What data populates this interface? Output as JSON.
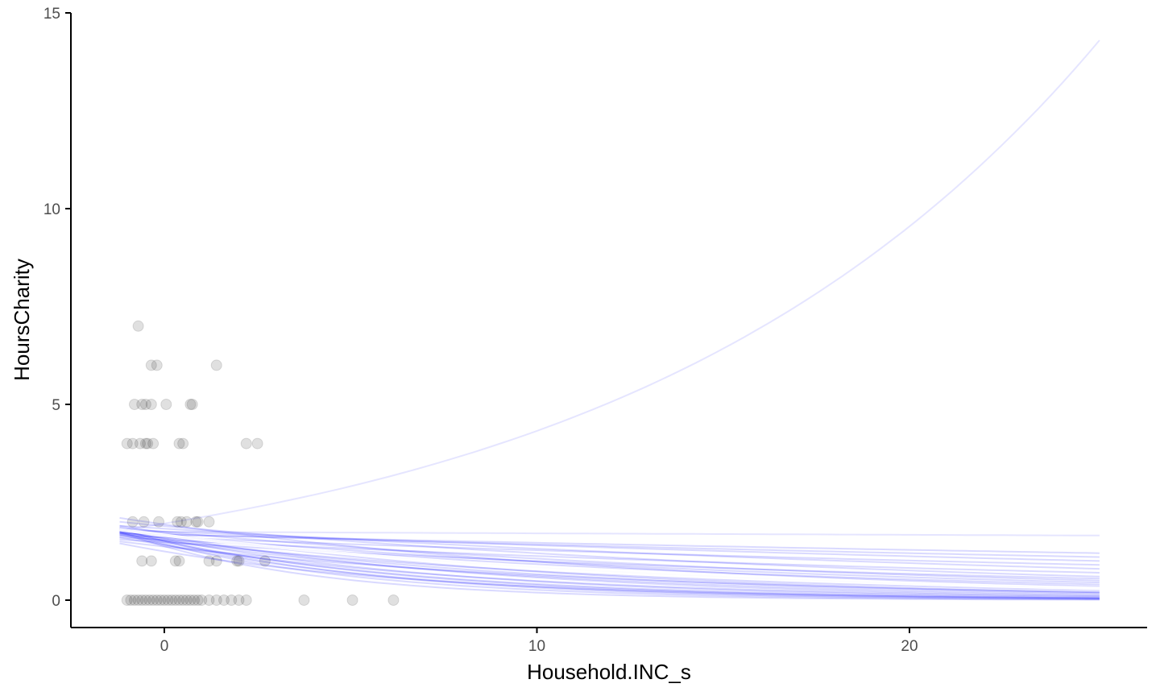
{
  "chart_data": {
    "type": "scatter",
    "xlabel": "Household.INC_s",
    "ylabel": "HoursCharity",
    "xlim": [
      -2.5,
      26.5
    ],
    "ylim": [
      -0.7,
      15
    ],
    "x_ticks": [
      0,
      10,
      20
    ],
    "y_ticks": [
      0,
      5,
      10,
      15
    ],
    "x_tick_labels": [
      "0",
      "10",
      "20"
    ],
    "y_tick_labels": [
      "0",
      "5",
      "10",
      "15"
    ],
    "grid": false,
    "colors": {
      "points": "#000000",
      "curves": "#0000ff",
      "highlight": "#ffffff",
      "axis": "#000000"
    },
    "points": {
      "x": [
        -0.7,
        -0.35,
        -0.2,
        1.4,
        -0.8,
        -0.6,
        -0.5,
        -0.35,
        0.05,
        0.7,
        0.75,
        -1.0,
        -0.85,
        -0.65,
        -0.5,
        -0.45,
        -0.3,
        0.4,
        0.5,
        2.2,
        2.5,
        -0.85,
        -0.55,
        -0.15,
        0.35,
        0.45,
        0.6,
        0.85,
        0.9,
        1.2,
        -0.6,
        -0.35,
        0.3,
        0.4,
        1.2,
        1.4,
        1.95,
        2.0,
        2.7,
        -1.0,
        -0.9,
        -0.8,
        -0.7,
        -0.6,
        -0.5,
        -0.4,
        -0.3,
        -0.2,
        -0.1,
        0.0,
        0.1,
        0.2,
        0.3,
        0.4,
        0.5,
        0.6,
        0.7,
        0.8,
        0.9,
        1.0,
        1.2,
        1.4,
        1.6,
        1.8,
        2.0,
        2.2,
        3.75,
        5.05,
        6.15
      ],
      "y": [
        7,
        6,
        6,
        6,
        5,
        5,
        5,
        5,
        5,
        5,
        5,
        4,
        4,
        4,
        4,
        4,
        4,
        4,
        4,
        4,
        4,
        2,
        2,
        2,
        2,
        2,
        2,
        2,
        2,
        2,
        1,
        1,
        1,
        1,
        1,
        1,
        1,
        1,
        1,
        0,
        0,
        0,
        0,
        0,
        0,
        0,
        0,
        0,
        0,
        0,
        0,
        0,
        0,
        0,
        0,
        0,
        0,
        0,
        0,
        0,
        0,
        0,
        0,
        0,
        0,
        0,
        0,
        0,
        0
      ]
    },
    "curves": {
      "x_start": -1.2,
      "x_end": 25.1,
      "series": [
        {
          "y0": 1.78,
          "y1": 14.3,
          "opacity": 0.1,
          "width": 2
        },
        {
          "y0": 1.75,
          "y1": 1.65,
          "opacity": 0.1,
          "width": 2
        },
        {
          "y0": 1.7,
          "y1": 1.2,
          "opacity": 0.15,
          "width": 2
        },
        {
          "y0": 1.72,
          "y1": 1.1,
          "opacity": 0.15,
          "width": 2
        },
        {
          "y0": 1.8,
          "y1": 1.0,
          "opacity": 0.15,
          "width": 2
        },
        {
          "y0": 1.65,
          "y1": 0.9,
          "opacity": 0.15,
          "width": 2
        },
        {
          "y0": 1.9,
          "y1": 0.8,
          "opacity": 0.15,
          "width": 2
        },
        {
          "y0": 1.6,
          "y1": 0.7,
          "opacity": 0.15,
          "width": 2
        },
        {
          "y0": 2.0,
          "y1": 0.6,
          "opacity": 0.15,
          "width": 2
        },
        {
          "y0": 1.55,
          "y1": 0.55,
          "opacity": 0.15,
          "width": 2
        },
        {
          "y0": 1.85,
          "y1": 0.5,
          "opacity": 0.15,
          "width": 2
        },
        {
          "y0": 1.75,
          "y1": 0.45,
          "opacity": 0.15,
          "width": 2
        },
        {
          "y0": 1.7,
          "y1": 0.4,
          "opacity": 0.15,
          "width": 2
        },
        {
          "y0": 2.1,
          "y1": 0.35,
          "opacity": 0.15,
          "width": 2
        },
        {
          "y0": 1.8,
          "y1": 0.3,
          "opacity": 0.15,
          "width": 2
        },
        {
          "y0": 1.65,
          "y1": 0.25,
          "opacity": 0.15,
          "width": 2
        },
        {
          "y0": 1.9,
          "y1": 0.2,
          "opacity": 0.15,
          "width": 2
        },
        {
          "y0": 1.75,
          "y1": 0.18,
          "opacity": 0.15,
          "width": 2
        },
        {
          "y0": 1.7,
          "y1": 0.15,
          "opacity": 0.15,
          "width": 2
        },
        {
          "y0": 1.85,
          "y1": 0.12,
          "opacity": 0.15,
          "width": 2
        },
        {
          "y0": 1.6,
          "y1": 0.1,
          "opacity": 0.15,
          "width": 2
        },
        {
          "y0": 1.8,
          "y1": 0.08,
          "opacity": 0.15,
          "width": 2
        },
        {
          "y0": 1.72,
          "y1": 0.06,
          "opacity": 0.15,
          "width": 2
        },
        {
          "y0": 1.78,
          "y1": 0.05,
          "opacity": 0.15,
          "width": 2
        },
        {
          "y0": 1.68,
          "y1": 0.04,
          "opacity": 0.15,
          "width": 2
        },
        {
          "y0": 1.82,
          "y1": 0.03,
          "opacity": 0.15,
          "width": 2
        },
        {
          "y0": 1.5,
          "y1": 0.2,
          "opacity": 0.15,
          "width": 2
        },
        {
          "y0": 1.45,
          "y1": 0.05,
          "opacity": 0.15,
          "width": 2
        },
        {
          "y0": 1.76,
          "y1": 0.02,
          "opacity": 0.15,
          "width": 2
        },
        {
          "y0": 1.74,
          "y1": 0.01,
          "opacity": 0.15,
          "width": 2
        }
      ],
      "highlight": {
        "y0": 1.8,
        "y1": 0.3,
        "opacity": 0.9,
        "width": 4
      }
    }
  }
}
